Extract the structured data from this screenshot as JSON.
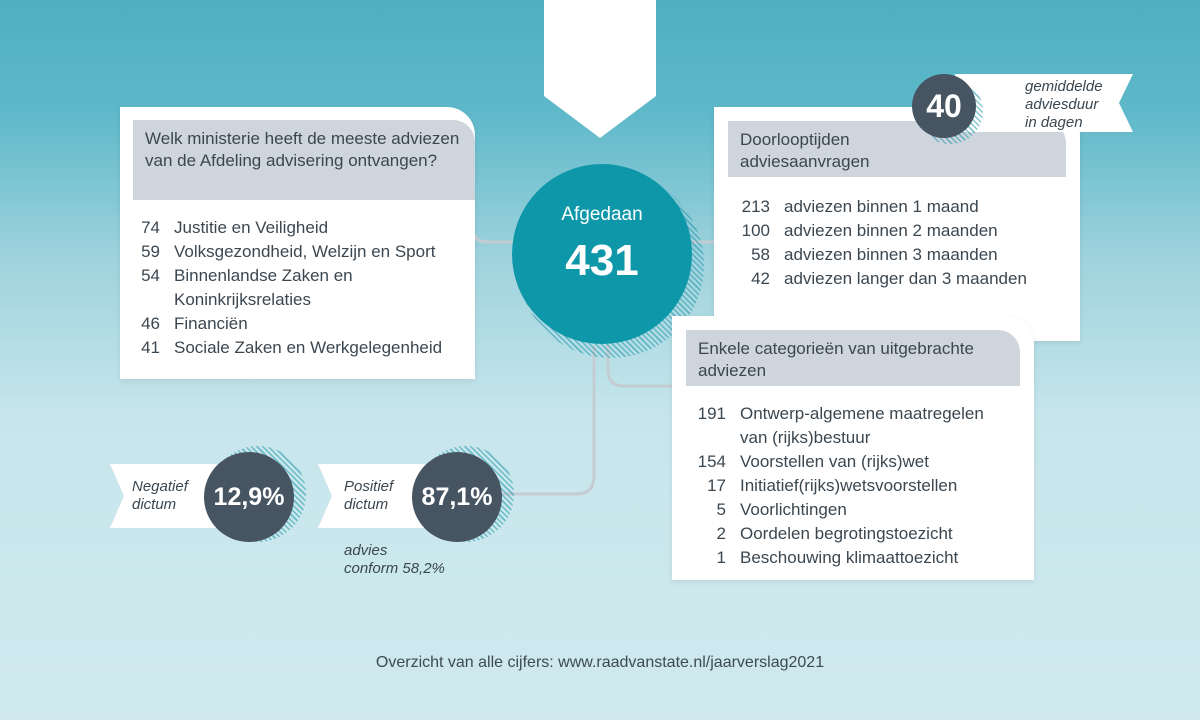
{
  "center": {
    "label": "Afgedaan",
    "value": "431"
  },
  "ministries": {
    "title": "Welk ministerie heeft de meeste adviezen van de Afdeling advisering ontvangen?",
    "items": [
      {
        "count": "74",
        "name": "Justitie en Veiligheid"
      },
      {
        "count": "59",
        "name": "Volksgezondheid, Welzijn en Sport"
      },
      {
        "count": "54",
        "name": "Binnenlandse Zaken en"
      },
      {
        "count": "",
        "name": "Koninkrijksrelaties"
      },
      {
        "count": "46",
        "name": "Financiën"
      },
      {
        "count": "41",
        "name": "Sociale Zaken en Werkgelegenheid"
      }
    ]
  },
  "lead_times": {
    "title": "Doorlooptijden adviesaanvragen",
    "average_value": "40",
    "average_label": [
      "gemiddelde",
      "adviesduur",
      "in dagen"
    ],
    "items": [
      {
        "count": "213",
        "label": "adviezen binnen 1 maand"
      },
      {
        "count": "100",
        "label": "adviezen binnen 2 maanden"
      },
      {
        "count": "58",
        "label": "adviezen binnen 3 maanden"
      },
      {
        "count": "42",
        "label": "adviezen langer dan 3 maanden"
      }
    ]
  },
  "categories": {
    "title": "Enkele categorieën van uitgebrachte adviezen",
    "items": [
      {
        "count": "191",
        "label": "Ontwerp-algemene maatregelen"
      },
      {
        "count": "",
        "label": "van (rijks)bestuur"
      },
      {
        "count": "154",
        "label": "Voorstellen van (rijks)wet"
      },
      {
        "count": "17",
        "label": "Initiatief(rijks)wetsvoorstellen"
      },
      {
        "count": "5",
        "label": "Voorlichtingen"
      },
      {
        "count": "2",
        "label": "Oordelen begrotingstoezicht"
      },
      {
        "count": "1",
        "label": "Beschouwing klimaattoezicht"
      }
    ]
  },
  "dictum": {
    "negative_label": [
      "Negatief",
      "dictum"
    ],
    "negative_value": "12,9%",
    "positive_label": [
      "Positief",
      "dictum"
    ],
    "positive_value": "87,1%",
    "conform_note": [
      "advies",
      "conform 58,2%"
    ]
  },
  "footer": "Overzicht van alle cijfers: www.raadvanstate.nl/jaarverslag2021",
  "colors": {
    "teal_circle": "#0d97a9",
    "dark_circle": "#475562",
    "card_header": "#cfd5dc"
  }
}
